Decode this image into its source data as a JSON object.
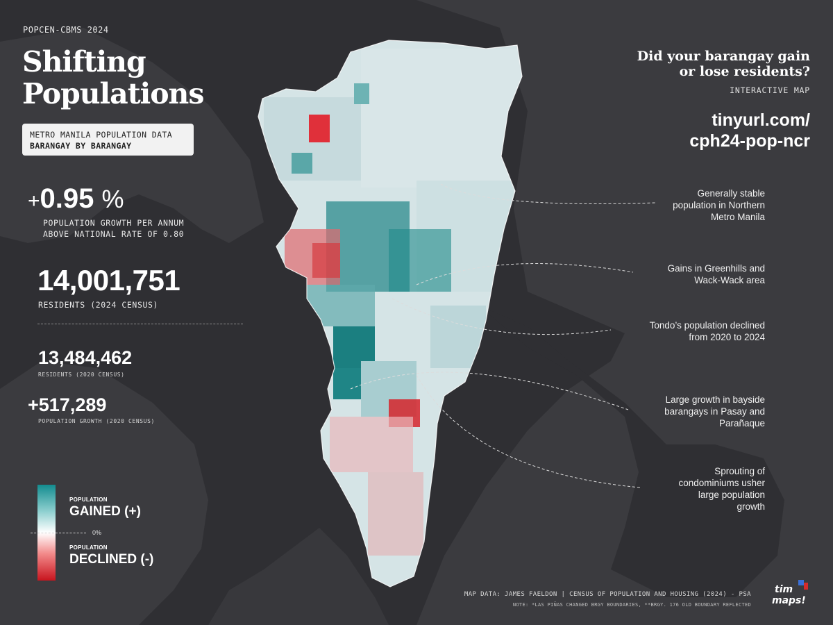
{
  "header": {
    "eyebrow": "POPCEN-CBMS 2024",
    "title_line1": "Shifting",
    "title_line2": "Populations",
    "badge_line1": "METRO MANILA POPULATION DATA",
    "badge_line2": "BARANGAY BY BARANGAY"
  },
  "stats": {
    "growth_sign": "+",
    "growth_value": "0.95",
    "growth_unit": "%",
    "growth_caption_line1": "POPULATION GROWTH PER ANNUM",
    "growth_caption_line2": "ABOVE NATIONAL RATE OF 0.80",
    "residents_2024": "14,001,751",
    "residents_2024_caption": "RESIDENTS (2024 CENSUS)",
    "residents_2020": "13,484,462",
    "residents_2020_caption": "RESIDENTS (2020 CENSUS)",
    "population_growth": "+517,289",
    "population_growth_caption": "POPULATION GROWTH (2020 CENSUS)"
  },
  "legend": {
    "gained_small": "POPULATION",
    "gained_label": "GAINED (+)",
    "zero_label": "0%",
    "declined_small": "POPULATION",
    "declined_label": "DECLINED (-)",
    "colors": {
      "gained": "#138c8f",
      "neutral": "#ffffff",
      "declined": "#c8141e"
    }
  },
  "cta": {
    "question_line1": "Did your barangay gain",
    "question_line2": "or lose residents?",
    "subtitle": "INTERACTIVE MAP",
    "url_line1": "tinyurl.com/",
    "url_line2": "cph24-pop-ncr"
  },
  "annotations": [
    {
      "lines": [
        "Generally stable",
        "population in Northern",
        "Metro Manila"
      ]
    },
    {
      "lines": [
        "Gains in Greenhills and",
        "Wack-Wack area"
      ]
    },
    {
      "lines": [
        "Tondo’s population declined",
        "from 2020 to 2024"
      ]
    },
    {
      "lines": [
        "Large growth in bayside",
        "barangays in Pasay and",
        "Parañaque"
      ]
    },
    {
      "lines": [
        "Sprouting of",
        "condominiums usher",
        "large population",
        "growth"
      ]
    }
  ],
  "footer": {
    "credit": "MAP DATA: JAMES FAELDON | CENSUS OF POPULATION AND HOUSING (2024) - PSA",
    "note": "NOTE: *LAS PIÑAS CHANGED BRGY BOUNDARIES, **BRGY. 176 OLD BOUNDARY REFLECTED",
    "logo_line1": "tim",
    "logo_line2": "maps!"
  }
}
